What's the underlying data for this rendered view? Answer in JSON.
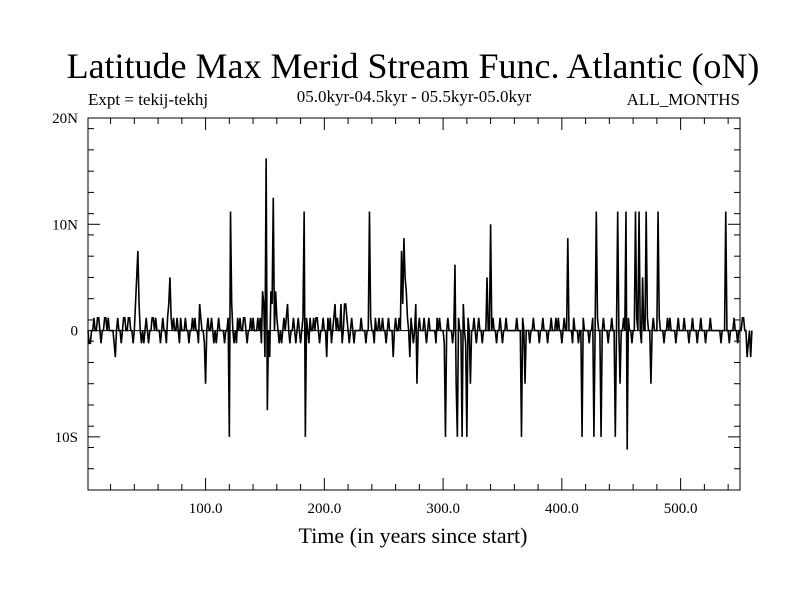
{
  "chart_data": {
    "type": "line",
    "title": "Latitude Max Merid Stream Func. Atlantic (oN)",
    "subtitle_left": "Expt = tekij-tekhj",
    "subtitle_center": "05.0kyr-04.5kyr - 05.5kyr-05.0kyr",
    "subtitle_right": "ALL_MONTHS",
    "xlabel": "Time (in years since start)",
    "ylabel": "",
    "xlim": [
      1,
      550
    ],
    "ylim": [
      -15,
      20
    ],
    "x_ticks": [
      100,
      200,
      300,
      400,
      500
    ],
    "x_tick_labels": [
      "100.0",
      "200.0",
      "300.0",
      "400.0",
      "500.0"
    ],
    "y_ticks": [
      -10,
      0,
      10,
      20
    ],
    "y_tick_labels": [
      "10S",
      "0",
      "10N",
      "20N"
    ],
    "grid": false,
    "zero_line": 0,
    "series": [
      {
        "name": "tekij-tekhj",
        "x_start": 1,
        "x_step": 1,
        "values": [
          0,
          -1.2,
          -1.2,
          0,
          0,
          1.2,
          0,
          0,
          1.2,
          1.2,
          0,
          -1.2,
          0,
          0,
          1.2,
          1.2,
          0,
          1.2,
          0,
          0,
          0,
          0,
          -1.2,
          -2.5,
          0,
          1.2,
          0,
          0,
          -1.2,
          0,
          1.2,
          1.2,
          0,
          0,
          1.2,
          1.2,
          0,
          0,
          -1.2,
          0,
          2.5,
          5,
          7.5,
          2.5,
          0,
          -1.2,
          0,
          -1.2,
          0,
          1.2,
          0,
          -1.2,
          0,
          0,
          1.2,
          1.2,
          0,
          1.2,
          0,
          0,
          0,
          -1.2,
          0,
          1.2,
          0,
          0,
          -1.2,
          1.2,
          2.5,
          5,
          1.2,
          0,
          1.2,
          0,
          0,
          1.2,
          0,
          -1.2,
          1.2,
          0,
          0,
          0,
          1.2,
          0,
          0,
          -1.2,
          0,
          0,
          1.2,
          0,
          1.2,
          0,
          0,
          -1.2,
          2.5,
          1.2,
          0,
          0,
          -1.2,
          -5,
          0,
          1.2,
          0,
          0,
          1.2,
          0,
          -1.2,
          0,
          -1.2,
          0,
          1.2,
          0,
          0,
          0,
          0,
          -1.2,
          0,
          0,
          1.2,
          -10,
          11.2,
          2.5,
          0,
          -1.2,
          0,
          -1.2,
          1.2,
          0,
          1.2,
          0,
          0,
          1.2,
          1.2,
          0,
          -1.2,
          0,
          0,
          1.2,
          0,
          1.2,
          0,
          0,
          0,
          1.2,
          0,
          1.2,
          -1.2,
          3.7,
          2.5,
          -2.5,
          16.2,
          -7.5,
          0,
          -2.5,
          3.7,
          2.5,
          12.5,
          0,
          3.7,
          1.2,
          0,
          -1.2,
          0,
          -1.2,
          0,
          1.2,
          0,
          1.2,
          2.5,
          0,
          -1.2,
          0,
          0,
          1.2,
          0,
          -1.2,
          0,
          1.2,
          0,
          -1.2,
          0,
          1.2,
          11.2,
          -10,
          1.2,
          0,
          -1.2,
          1.2,
          0,
          0,
          1.2,
          0,
          1.2,
          1.2,
          0,
          -1.2,
          0,
          0,
          1.2,
          0,
          0,
          -2.5,
          1.2,
          0,
          1.2,
          -1.2,
          0,
          1.2,
          2.5,
          0,
          1.2,
          0,
          0,
          2.5,
          -1.2,
          0,
          2.5,
          2.5,
          1.2,
          0,
          -1.2,
          0,
          1.2,
          0,
          -1.2,
          0,
          0,
          0,
          0,
          0,
          1.2,
          0,
          0,
          0,
          -1.2,
          0,
          0,
          11.2,
          1.2,
          0,
          0,
          -1.2,
          1.2,
          0,
          0,
          1.2,
          0,
          0,
          1.2,
          0,
          0,
          -1.2,
          0,
          1.2,
          0,
          0,
          0,
          -2.5,
          0,
          1.2,
          0,
          0,
          1.2,
          0,
          7.5,
          2.5,
          8.7,
          5,
          3.7,
          1.2,
          0,
          -2.5,
          1.2,
          0,
          -1.2,
          0,
          2.5,
          -5,
          0,
          1.2,
          0,
          0,
          0,
          1.2,
          0,
          -1.2,
          0,
          1.2,
          0,
          0,
          0,
          0,
          0,
          -1.2,
          1.2,
          0,
          1.2,
          0,
          0,
          0,
          -1.2,
          -10,
          0,
          1.2,
          0,
          0,
          0,
          -1.2,
          0,
          6.2,
          -5,
          -10,
          1.2,
          0,
          0,
          -10,
          2.5,
          0,
          -1.2,
          -10,
          1.2,
          0,
          -5,
          0,
          0,
          1.2,
          0,
          -1.2,
          0,
          1.2,
          0,
          0,
          -1.2,
          0,
          0,
          0,
          5,
          0,
          0,
          10,
          0,
          1.2,
          0,
          0,
          -1.2,
          0,
          0,
          1.2,
          0,
          -1.2,
          0,
          0,
          1.2,
          0,
          0,
          0,
          0,
          0,
          0,
          0,
          0,
          1.2,
          0,
          0,
          0,
          -10,
          1.2,
          0,
          -5,
          0,
          0,
          0,
          -1.2,
          0,
          0,
          1.2,
          0,
          0,
          0,
          0,
          -1.2,
          0,
          0,
          1.2,
          0,
          0,
          0,
          -1.2,
          0,
          0,
          1.2,
          0,
          0,
          0,
          1.2,
          0,
          1.2,
          0,
          0,
          -1.2,
          0,
          1.2,
          0,
          0,
          8.7,
          0,
          0,
          0,
          -1.2,
          1.2,
          0,
          0,
          0,
          -1.2,
          0,
          0,
          -10,
          1.2,
          0,
          0,
          0,
          0,
          -1.2,
          0,
          0,
          1.2,
          -10,
          0,
          11.2,
          1.2,
          0,
          0,
          -10,
          0,
          1.2,
          0,
          0,
          0,
          -1.2,
          0,
          0,
          1.2,
          0,
          0,
          -10,
          0,
          11.2,
          0,
          -5,
          0,
          0,
          1.2,
          0,
          11.2,
          -11.2,
          1.2,
          0,
          0,
          -1.2,
          0,
          0,
          11.2,
          1.2,
          0,
          11.2,
          0,
          -1.2,
          5,
          0,
          0,
          11.2,
          1.2,
          0,
          0,
          -5,
          0,
          1.2,
          0,
          0,
          0,
          11.2,
          1.2,
          0,
          0,
          0,
          -1.2,
          0,
          0,
          1.2,
          0,
          1.2,
          0,
          0,
          0,
          0,
          -1.2,
          0,
          1.2,
          0,
          0,
          0,
          0,
          1.2,
          0,
          0,
          0,
          -1.2,
          0,
          0,
          1.2,
          0,
          0,
          0,
          -1.2,
          0,
          0,
          1.2,
          0,
          0,
          0,
          -1.2,
          0,
          0,
          0,
          1.2,
          0,
          0,
          0,
          0,
          0,
          0,
          0,
          0,
          -1.2,
          0,
          0,
          0,
          11.2,
          0,
          0,
          -1.2,
          0,
          0,
          0,
          1.2,
          0,
          0,
          -1.2,
          0,
          0,
          0,
          1.2,
          1.2,
          0,
          0,
          -2.5,
          -1.2,
          0,
          -2.5,
          0
        ]
      }
    ]
  }
}
